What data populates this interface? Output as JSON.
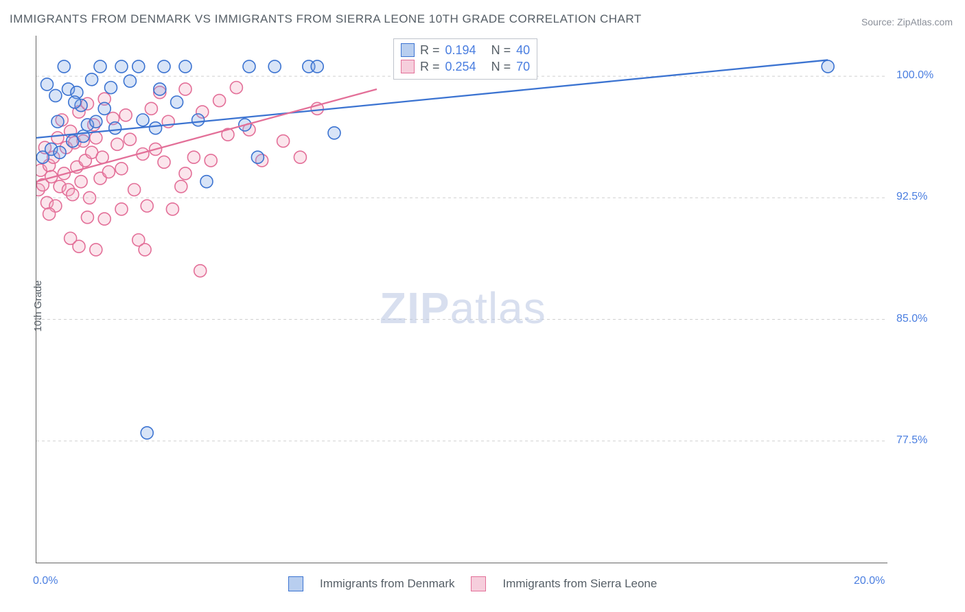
{
  "title": "IMMIGRANTS FROM DENMARK VS IMMIGRANTS FROM SIERRA LEONE 10TH GRADE CORRELATION CHART",
  "source": "Source: ZipAtlas.com",
  "ylabel": "10th Grade",
  "watermark_bold": "ZIP",
  "watermark_rest": "atlas",
  "chart": {
    "type": "scatter",
    "xlim": [
      0,
      20
    ],
    "ylim": [
      70,
      102.5
    ],
    "x_tick_labels": [
      "0.0%",
      "20.0%"
    ],
    "x_tick_positions": [
      0,
      20
    ],
    "x_minor_ticks": [
      2.0,
      6.1,
      9.4,
      13.1,
      16.8
    ],
    "y_tick_labels": [
      "100.0%",
      "92.5%",
      "85.0%",
      "77.5%"
    ],
    "y_tick_positions": [
      100.0,
      92.5,
      85.0,
      77.5
    ],
    "grid_color": "#cfcfcf",
    "axis_color": "#666666",
    "background": "#ffffff",
    "point_radius": 9,
    "point_fill_opacity": 0.3,
    "point_stroke_width": 1.6,
    "trend_line_width": 2.3,
    "series": [
      {
        "name": "Immigrants from Denmark",
        "color_stroke": "#3b73d1",
        "color_fill": "#7fa6e6",
        "R": "0.194",
        "N": "40",
        "trend": {
          "x1": 0,
          "y1": 96.2,
          "x2": 18.6,
          "y2": 101.0
        },
        "points": [
          [
            0.15,
            95.0
          ],
          [
            0.25,
            99.5
          ],
          [
            0.35,
            95.5
          ],
          [
            0.45,
            98.8
          ],
          [
            0.5,
            97.2
          ],
          [
            0.65,
            100.6
          ],
          [
            0.75,
            99.2
          ],
          [
            0.85,
            96.0
          ],
          [
            0.95,
            99.0
          ],
          [
            1.05,
            98.2
          ],
          [
            1.2,
            97.0
          ],
          [
            1.3,
            99.8
          ],
          [
            1.4,
            97.2
          ],
          [
            1.5,
            100.6
          ],
          [
            1.6,
            98.0
          ],
          [
            1.75,
            99.3
          ],
          [
            1.85,
            96.8
          ],
          [
            2.0,
            100.6
          ],
          [
            2.2,
            99.7
          ],
          [
            2.4,
            100.6
          ],
          [
            2.5,
            97.3
          ],
          [
            2.8,
            96.8
          ],
          [
            2.9,
            99.2
          ],
          [
            3.0,
            100.6
          ],
          [
            3.3,
            98.4
          ],
          [
            3.5,
            100.6
          ],
          [
            3.8,
            97.3
          ],
          [
            4.0,
            93.5
          ],
          [
            4.9,
            97.0
          ],
          [
            5.0,
            100.6
          ],
          [
            5.2,
            95.0
          ],
          [
            5.6,
            100.6
          ],
          [
            6.4,
            100.6
          ],
          [
            6.6,
            100.6
          ],
          [
            7.0,
            96.5
          ],
          [
            2.6,
            78.0
          ],
          [
            18.6,
            100.6
          ],
          [
            0.55,
            95.3
          ],
          [
            1.1,
            96.3
          ],
          [
            0.9,
            98.4
          ]
        ]
      },
      {
        "name": "Immigrants from Sierra Leone",
        "color_stroke": "#e36f98",
        "color_fill": "#f2a9c0",
        "R": "0.254",
        "N": "70",
        "trend": {
          "x1": 0,
          "y1": 93.5,
          "x2": 8.0,
          "y2": 99.2
        },
        "points": [
          [
            0.05,
            93.0
          ],
          [
            0.1,
            94.2
          ],
          [
            0.15,
            93.3
          ],
          [
            0.2,
            95.6
          ],
          [
            0.25,
            92.2
          ],
          [
            0.3,
            94.5
          ],
          [
            0.35,
            93.8
          ],
          [
            0.4,
            95.0
          ],
          [
            0.45,
            92.0
          ],
          [
            0.5,
            96.2
          ],
          [
            0.55,
            93.2
          ],
          [
            0.6,
            97.3
          ],
          [
            0.65,
            94.0
          ],
          [
            0.7,
            95.6
          ],
          [
            0.75,
            93.0
          ],
          [
            0.8,
            96.6
          ],
          [
            0.85,
            92.7
          ],
          [
            0.9,
            95.9
          ],
          [
            0.95,
            94.4
          ],
          [
            1.0,
            97.8
          ],
          [
            1.05,
            93.5
          ],
          [
            1.1,
            96.0
          ],
          [
            1.15,
            94.8
          ],
          [
            1.2,
            98.3
          ],
          [
            1.25,
            92.5
          ],
          [
            1.3,
            95.3
          ],
          [
            1.35,
            97.0
          ],
          [
            1.4,
            96.2
          ],
          [
            1.5,
            93.7
          ],
          [
            1.55,
            95.0
          ],
          [
            1.6,
            98.6
          ],
          [
            1.7,
            94.1
          ],
          [
            1.8,
            97.4
          ],
          [
            1.9,
            95.8
          ],
          [
            2.0,
            94.3
          ],
          [
            2.1,
            97.6
          ],
          [
            2.2,
            96.1
          ],
          [
            2.3,
            93.0
          ],
          [
            2.5,
            95.2
          ],
          [
            2.6,
            92.0
          ],
          [
            2.7,
            98.0
          ],
          [
            2.8,
            95.5
          ],
          [
            2.9,
            99.0
          ],
          [
            3.0,
            94.7
          ],
          [
            3.1,
            97.2
          ],
          [
            3.4,
            93.2
          ],
          [
            3.5,
            99.2
          ],
          [
            3.7,
            95.0
          ],
          [
            3.9,
            97.8
          ],
          [
            4.1,
            94.8
          ],
          [
            4.3,
            98.5
          ],
          [
            4.5,
            96.4
          ],
          [
            4.7,
            99.3
          ],
          [
            5.0,
            96.7
          ],
          [
            5.3,
            94.8
          ],
          [
            5.8,
            96.0
          ],
          [
            6.2,
            95.0
          ],
          [
            6.6,
            98.0
          ],
          [
            0.8,
            90.0
          ],
          [
            1.0,
            89.5
          ],
          [
            1.2,
            91.3
          ],
          [
            1.4,
            89.3
          ],
          [
            1.6,
            91.2
          ],
          [
            2.0,
            91.8
          ],
          [
            2.4,
            89.9
          ],
          [
            2.55,
            89.3
          ],
          [
            3.2,
            91.8
          ],
          [
            3.5,
            94.0
          ],
          [
            3.85,
            88.0
          ],
          [
            0.3,
            91.5
          ]
        ]
      }
    ]
  },
  "legend_top": {
    "rows": [
      {
        "swatch_stroke": "#3b73d1",
        "swatch_fill": "#b8ceef",
        "r_label": "R =",
        "r_value": "0.194",
        "n_label": "N =",
        "n_value": "40"
      },
      {
        "swatch_stroke": "#e36f98",
        "swatch_fill": "#f6cedc",
        "r_label": "R =",
        "r_value": "0.254",
        "n_label": "N =",
        "n_value": "70"
      }
    ]
  },
  "legend_bottom": [
    {
      "swatch_stroke": "#3b73d1",
      "swatch_fill": "#b8ceef",
      "label": "Immigrants from Denmark"
    },
    {
      "swatch_stroke": "#e36f98",
      "swatch_fill": "#f6cedc",
      "label": "Immigrants from Sierra Leone"
    }
  ]
}
